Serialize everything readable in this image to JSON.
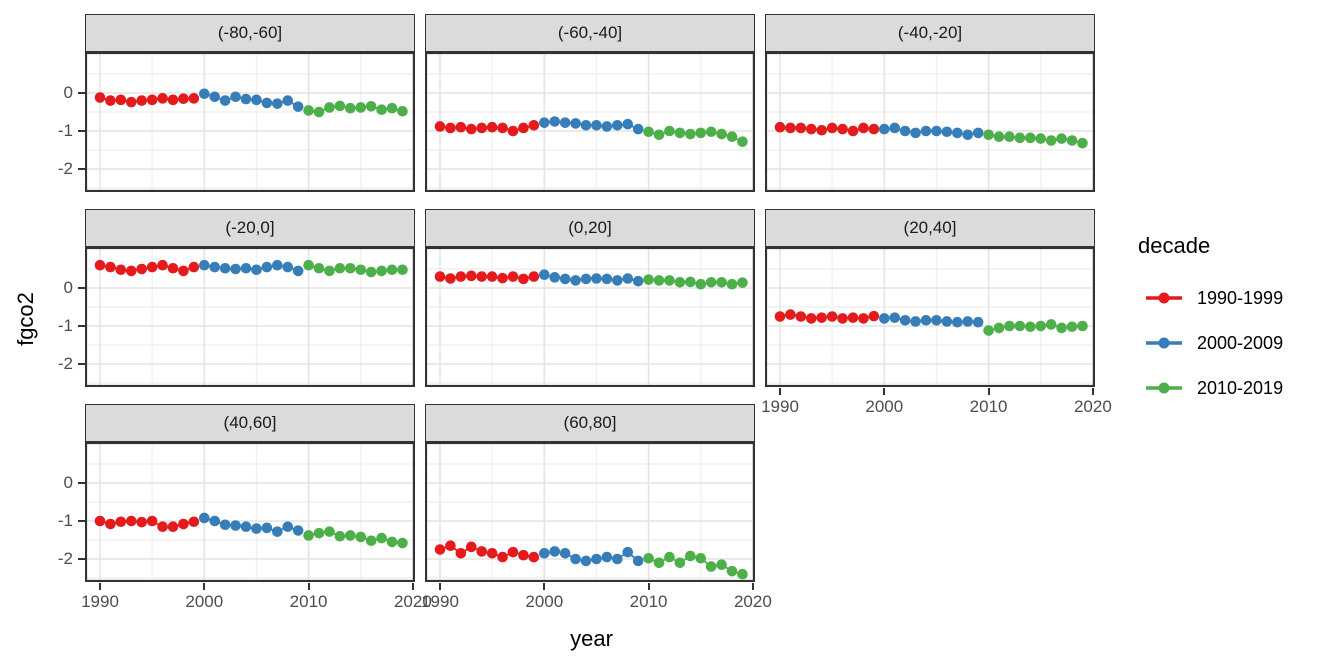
{
  "chart_data": {
    "type": "scatter",
    "xlabel": "year",
    "ylabel": "fgco2",
    "legend_title": "decade",
    "legend_position": "right",
    "grid": true,
    "x_ticks": [
      1990,
      2000,
      2010,
      2020
    ],
    "x_minor_ticks": [
      1995,
      2005,
      2015
    ],
    "y_ticks": [
      0,
      -1,
      -2
    ],
    "y_minor_ticks": [
      0.5,
      -0.5,
      -1.5,
      -2.5
    ],
    "xlim": [
      1988.6,
      2021.6
    ],
    "ylim": [
      -2.6,
      1.08
    ],
    "years": [
      1990,
      1991,
      1992,
      1993,
      1994,
      1995,
      1996,
      1997,
      1998,
      1999,
      2000,
      2001,
      2002,
      2003,
      2004,
      2005,
      2006,
      2007,
      2008,
      2009,
      2010,
      2011,
      2012,
      2013,
      2014,
      2015,
      2016,
      2017,
      2018,
      2019
    ],
    "decades": [
      {
        "label": "1990-1999",
        "color": "#E41A1C",
        "start": 1990,
        "end": 1999
      },
      {
        "label": "2000-2009",
        "color": "#377EB8",
        "start": 2000,
        "end": 2009
      },
      {
        "label": "2010-2019",
        "color": "#4DAF4A",
        "start": 2010,
        "end": 2019
      }
    ],
    "facets": [
      {
        "label": "(-80,-60]",
        "values": [
          -0.12,
          -0.2,
          -0.18,
          -0.24,
          -0.2,
          -0.18,
          -0.14,
          -0.18,
          -0.15,
          -0.14,
          -0.02,
          -0.1,
          -0.2,
          -0.1,
          -0.16,
          -0.18,
          -0.26,
          -0.28,
          -0.2,
          -0.36,
          -0.46,
          -0.5,
          -0.38,
          -0.34,
          -0.4,
          -0.38,
          -0.35,
          -0.44,
          -0.4,
          -0.48
        ]
      },
      {
        "label": "(-60,-40]",
        "values": [
          -0.88,
          -0.92,
          -0.9,
          -0.95,
          -0.92,
          -0.9,
          -0.92,
          -1.0,
          -0.92,
          -0.85,
          -0.78,
          -0.75,
          -0.78,
          -0.8,
          -0.85,
          -0.85,
          -0.88,
          -0.85,
          -0.82,
          -0.95,
          -1.02,
          -1.1,
          -1.0,
          -1.05,
          -1.08,
          -1.05,
          -1.02,
          -1.08,
          -1.15,
          -1.28
        ]
      },
      {
        "label": "(-40,-20]",
        "values": [
          -0.9,
          -0.92,
          -0.92,
          -0.95,
          -0.98,
          -0.92,
          -0.95,
          -1.0,
          -0.92,
          -0.95,
          -0.95,
          -0.92,
          -1.0,
          -1.05,
          -1.0,
          -1.0,
          -1.02,
          -1.05,
          -1.1,
          -1.05,
          -1.1,
          -1.15,
          -1.15,
          -1.18,
          -1.18,
          -1.2,
          -1.25,
          -1.2,
          -1.25,
          -1.32
        ]
      },
      {
        "label": "(-20,0]",
        "values": [
          0.6,
          0.55,
          0.48,
          0.45,
          0.5,
          0.55,
          0.6,
          0.52,
          0.45,
          0.55,
          0.6,
          0.55,
          0.52,
          0.5,
          0.52,
          0.48,
          0.55,
          0.6,
          0.55,
          0.45,
          0.6,
          0.52,
          0.45,
          0.52,
          0.52,
          0.48,
          0.42,
          0.45,
          0.48,
          0.48
        ]
      },
      {
        "label": "(0,20]",
        "values": [
          0.3,
          0.25,
          0.3,
          0.32,
          0.3,
          0.3,
          0.26,
          0.3,
          0.24,
          0.3,
          0.35,
          0.28,
          0.24,
          0.2,
          0.24,
          0.25,
          0.24,
          0.2,
          0.25,
          0.18,
          0.22,
          0.2,
          0.2,
          0.15,
          0.16,
          0.1,
          0.15,
          0.15,
          0.1,
          0.14
        ]
      },
      {
        "label": "(20,40]",
        "values": [
          -0.75,
          -0.7,
          -0.75,
          -0.8,
          -0.78,
          -0.75,
          -0.8,
          -0.78,
          -0.8,
          -0.74,
          -0.8,
          -0.78,
          -0.85,
          -0.88,
          -0.85,
          -0.85,
          -0.88,
          -0.9,
          -0.88,
          -0.9,
          -1.12,
          -1.05,
          -1.0,
          -1.0,
          -1.02,
          -1.0,
          -0.96,
          -1.05,
          -1.02,
          -1.0
        ]
      },
      {
        "label": "(40,60]",
        "values": [
          -1.0,
          -1.08,
          -1.02,
          -1.0,
          -1.03,
          -1.0,
          -1.15,
          -1.15,
          -1.08,
          -1.02,
          -0.92,
          -1.0,
          -1.1,
          -1.12,
          -1.15,
          -1.2,
          -1.18,
          -1.28,
          -1.15,
          -1.25,
          -1.38,
          -1.32,
          -1.28,
          -1.4,
          -1.38,
          -1.42,
          -1.52,
          -1.45,
          -1.55,
          -1.58
        ]
      },
      {
        "label": "(60,80]",
        "values": [
          -1.75,
          -1.65,
          -1.85,
          -1.68,
          -1.8,
          -1.85,
          -1.95,
          -1.82,
          -1.9,
          -1.95,
          -1.85,
          -1.8,
          -1.85,
          -2.0,
          -2.05,
          -2.0,
          -1.95,
          -2.0,
          -1.82,
          -2.05,
          -1.98,
          -2.1,
          -1.95,
          -2.1,
          -1.92,
          -1.98,
          -2.2,
          -2.15,
          -2.32,
          -2.4
        ]
      }
    ],
    "style": {
      "strip_bg": "#DBDBDB",
      "panel_border": "#333333",
      "grid_major": "#E4E4E4",
      "grid_minor": "#F1F1F1",
      "axis_text": "#4D4D4D",
      "background": "#FFFFFF"
    }
  }
}
